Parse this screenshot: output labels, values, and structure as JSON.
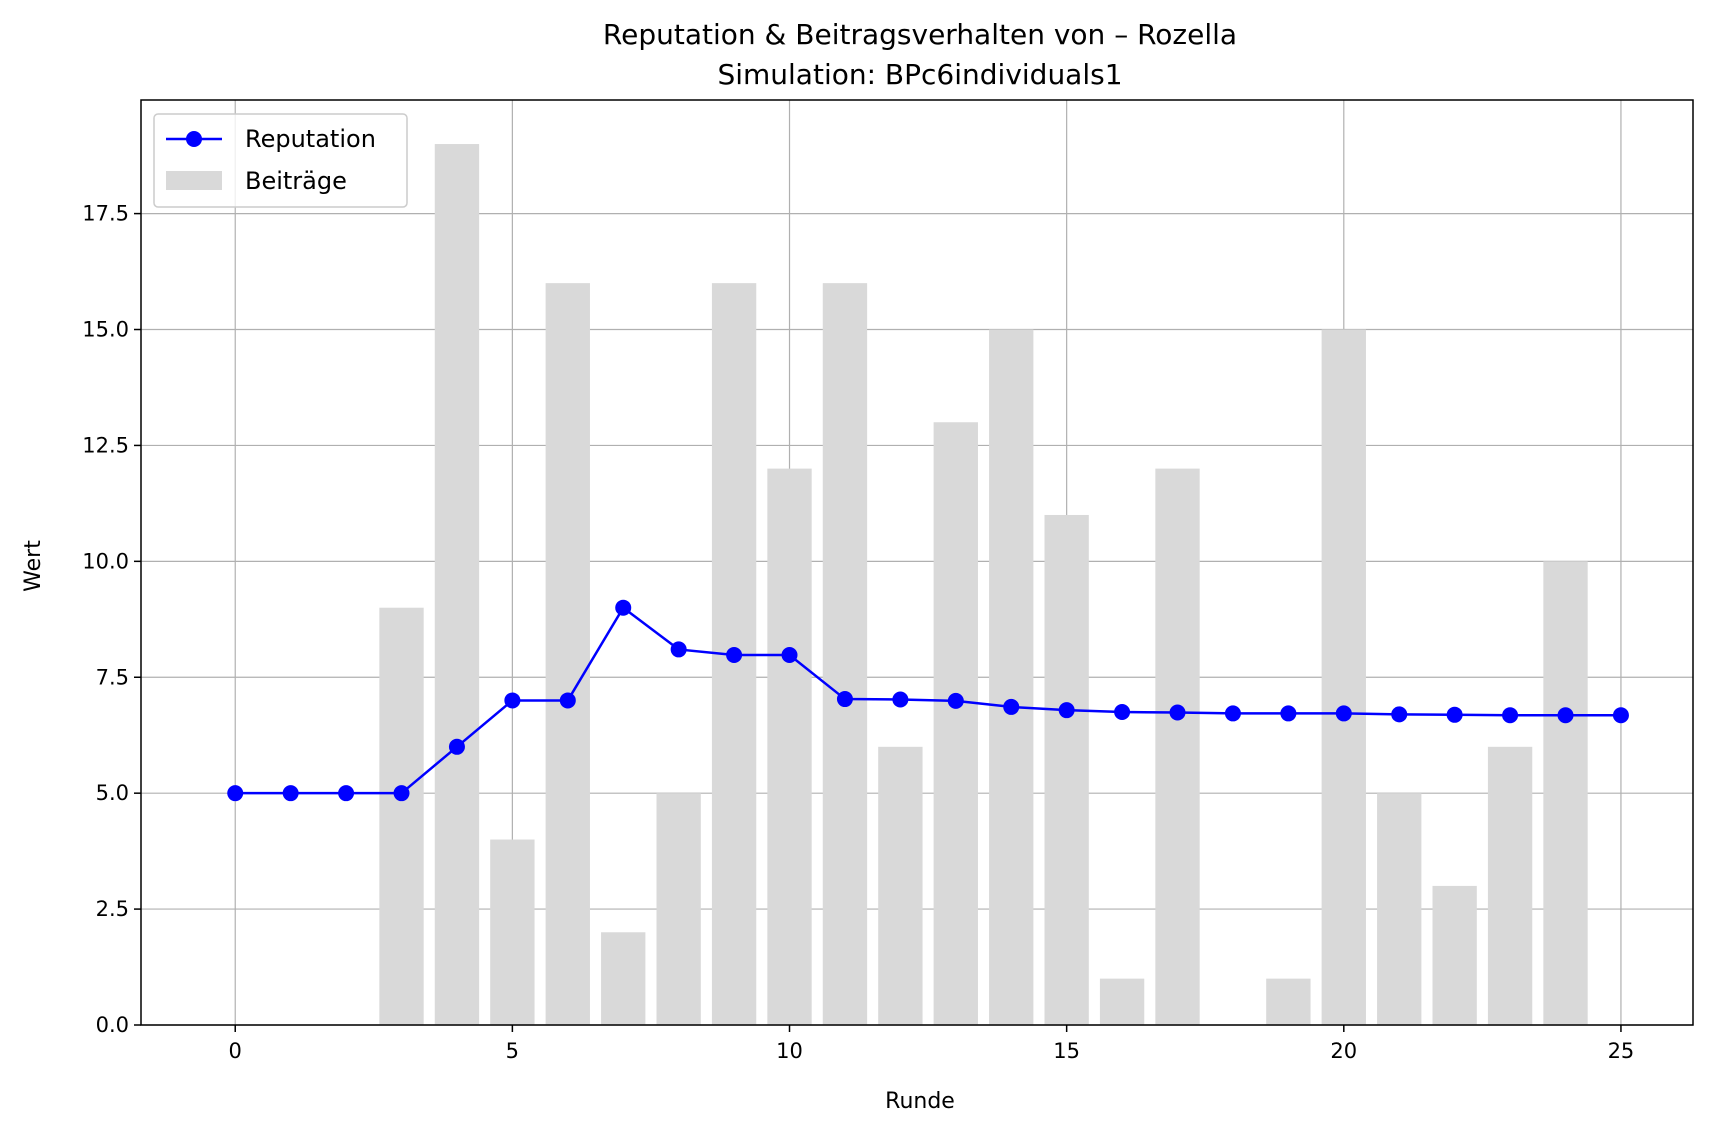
{
  "chart_data": {
    "type": "bar+line",
    "title": "Reputation & Beitragsverhalten von – Rozella",
    "subtitle": "Simulation: BPc6individuals1",
    "xlabel": "Runde",
    "ylabel": "Wert",
    "xlim": [
      -1.7,
      26.3
    ],
    "ylim": [
      0,
      19.95
    ],
    "x_ticks": [
      0,
      5,
      10,
      15,
      20,
      25
    ],
    "y_ticks": [
      0.0,
      2.5,
      5.0,
      7.5,
      10.0,
      12.5,
      15.0,
      17.5
    ],
    "x_tick_labels": [
      "0",
      "5",
      "10",
      "15",
      "20",
      "25"
    ],
    "y_tick_labels": [
      "0.0",
      "2.5",
      "5.0",
      "7.5",
      "10.0",
      "12.5",
      "15.0",
      "17.5"
    ],
    "grid": true,
    "legend_position": "top-left",
    "x": [
      0,
      1,
      2,
      3,
      4,
      5,
      6,
      7,
      8,
      9,
      10,
      11,
      12,
      13,
      14,
      15,
      16,
      17,
      18,
      19,
      20,
      21,
      22,
      23,
      24,
      25
    ],
    "series": [
      {
        "name": "Reputation",
        "kind": "line",
        "color": "#0000ff",
        "values": [
          5.0,
          5.0,
          5.0,
          5.0,
          6.0,
          7.0,
          7.0,
          9.0,
          8.1,
          7.98,
          7.98,
          7.03,
          7.02,
          6.99,
          6.86,
          6.79,
          6.75,
          6.74,
          6.72,
          6.72,
          6.72,
          6.7,
          6.69,
          6.68,
          6.68,
          6.68
        ]
      },
      {
        "name": "Beiträge",
        "kind": "bar",
        "color": "#d9d9d9",
        "values": [
          0,
          0,
          0,
          9,
          19,
          4,
          16,
          2,
          5,
          16,
          12,
          16,
          6,
          13,
          15,
          11,
          1,
          12,
          0,
          1,
          15,
          5,
          3,
          6,
          10,
          0
        ]
      }
    ]
  }
}
